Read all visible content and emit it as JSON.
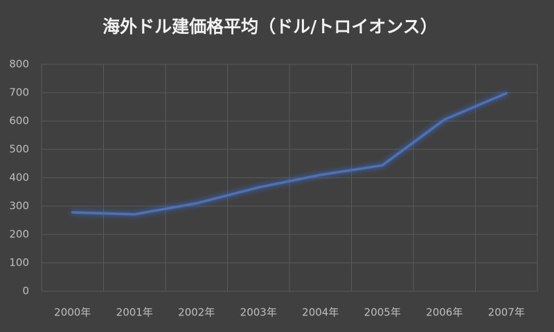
{
  "chart_data": {
    "type": "line",
    "title": "海外ドル建価格平均（ドル/トロイオンス）",
    "categories": [
      "2000年",
      "2001年",
      "2002年",
      "2003年",
      "2004年",
      "2005年",
      "2006年",
      "2007年"
    ],
    "values": [
      278,
      271,
      310,
      366,
      410,
      444,
      605,
      698
    ],
    "color": "#4472c4",
    "ylim": [
      0,
      800
    ],
    "yticks": [
      0,
      100,
      200,
      300,
      400,
      500,
      600,
      700,
      800
    ],
    "grid": true
  }
}
